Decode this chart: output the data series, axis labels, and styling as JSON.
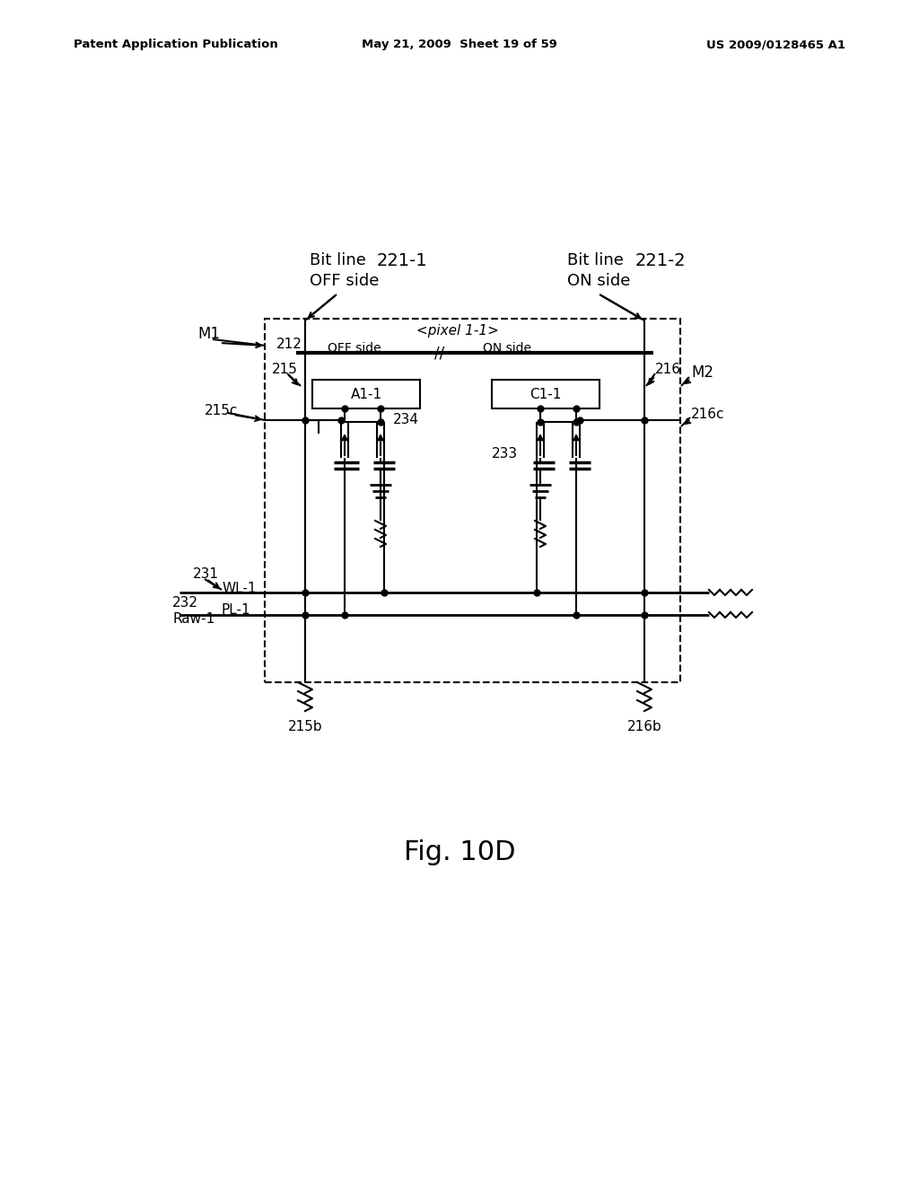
{
  "header_left": "Patent Application Publication",
  "header_center": "May 21, 2009  Sheet 19 of 59",
  "header_right": "US 2009/0128465 A1",
  "fig_label": "Fig. 10D",
  "bg_color": "#ffffff"
}
